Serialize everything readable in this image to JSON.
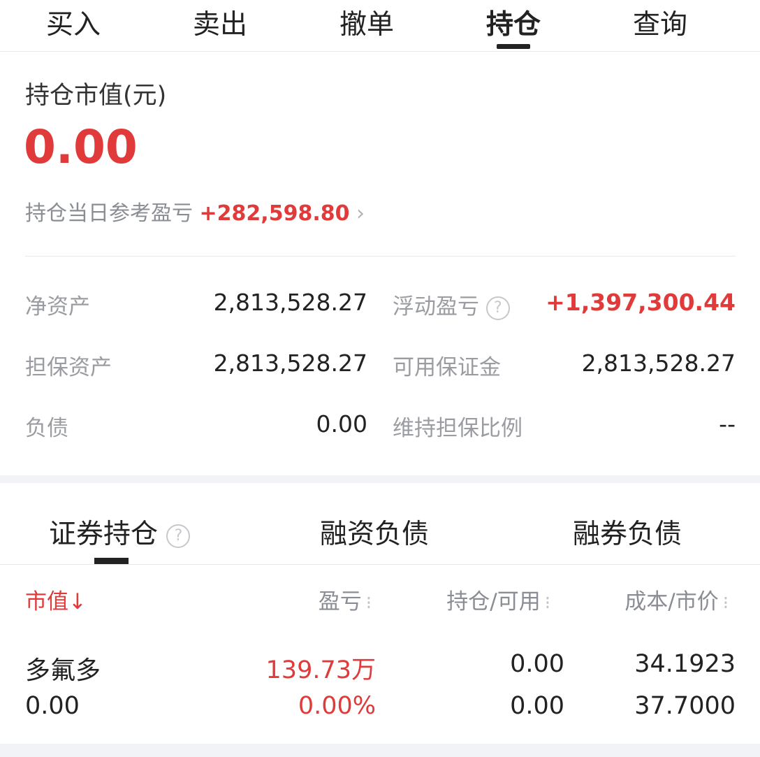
{
  "top_tabs": [
    {
      "label": "买入"
    },
    {
      "label": "卖出"
    },
    {
      "label": "撤单"
    },
    {
      "label": "持仓",
      "active": true
    },
    {
      "label": "查询"
    }
  ],
  "summary": {
    "title": "持仓市值(元)",
    "market_value": "0.00",
    "daily_pl_label": "持仓当日参考盈亏",
    "daily_pl_value": "+282,598.80"
  },
  "stats": [
    {
      "label": "净资产",
      "value": "2,813,528.27"
    },
    {
      "label": "浮动盈亏",
      "value": "+1,397,300.44",
      "help": true
    },
    {
      "label": "担保资产",
      "value": "2,813,528.27"
    },
    {
      "label": "可用保证金",
      "value": "2,813,528.27"
    },
    {
      "label": "负债",
      "value": "0.00"
    },
    {
      "label": "维持担保比例",
      "value": "--"
    }
  ],
  "sub_tabs": [
    {
      "label": "证券持仓",
      "active": true,
      "help": true
    },
    {
      "label": "融资负债"
    },
    {
      "label": "融券负债"
    }
  ],
  "table": {
    "headers": [
      "市值↓",
      "盈亏",
      "持仓/可用",
      "成本/市价"
    ],
    "rows": [
      {
        "name": "多氟多",
        "market_value": "0.00",
        "pl": "139.73万",
        "pl_pct": "0.00%",
        "position": "0.00",
        "available": "0.00",
        "cost": "34.1923",
        "price": "37.7000"
      }
    ]
  },
  "colors": {
    "accent_red": "#e03a3a",
    "text": "#222222",
    "muted": "#9a9ca1",
    "band": "#f2f3f6"
  }
}
